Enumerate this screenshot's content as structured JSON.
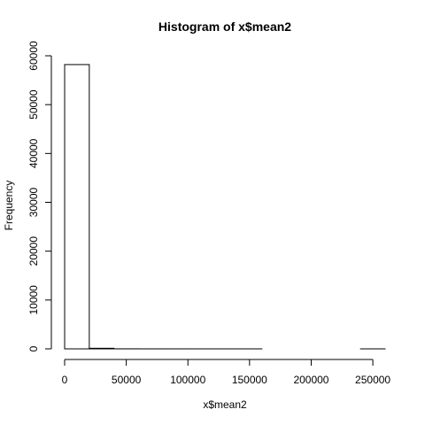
{
  "chart_data": {
    "type": "bar",
    "title": "Histogram of x$mean2",
    "xlabel": "x$mean2",
    "ylabel": "Frequency",
    "bin_width": 20000,
    "bins": [
      {
        "start": 0,
        "end": 20000,
        "count": 58200
      },
      {
        "start": 20000,
        "end": 40000,
        "count": 120
      },
      {
        "start": 40000,
        "end": 60000,
        "count": 10
      },
      {
        "start": 60000,
        "end": 80000,
        "count": 3
      },
      {
        "start": 80000,
        "end": 100000,
        "count": 2
      },
      {
        "start": 100000,
        "end": 120000,
        "count": 1
      },
      {
        "start": 120000,
        "end": 140000,
        "count": 1
      },
      {
        "start": 140000,
        "end": 160000,
        "count": 1
      },
      {
        "start": 160000,
        "end": 180000,
        "count": 0
      },
      {
        "start": 180000,
        "end": 200000,
        "count": 0
      },
      {
        "start": 200000,
        "end": 220000,
        "count": 0
      },
      {
        "start": 220000,
        "end": 240000,
        "count": 0
      },
      {
        "start": 240000,
        "end": 260000,
        "count": 1
      }
    ],
    "xlim": [
      0,
      260000
    ],
    "ylim": [
      0,
      60000
    ],
    "x_ticks": [
      0,
      50000,
      100000,
      150000,
      200000,
      250000
    ],
    "x_tick_labels": [
      "0",
      "50000",
      "100000",
      "150000",
      "200000",
      "250000"
    ],
    "y_ticks": [
      0,
      10000,
      20000,
      30000,
      40000,
      50000,
      60000
    ],
    "y_tick_labels": [
      "0",
      "10000",
      "20000",
      "30000",
      "40000",
      "50000",
      "60000"
    ],
    "grid": false,
    "colors": {
      "bar_fill": "#ffffff",
      "bar_stroke": "#000000",
      "axis": "#000000"
    }
  }
}
